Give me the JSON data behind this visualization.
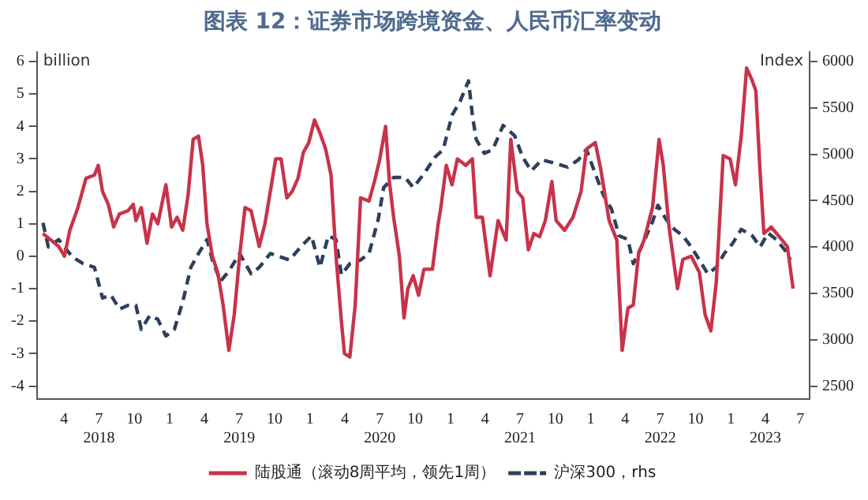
{
  "chart_data": {
    "type": "line",
    "title": "图表 12：证券市场跨境资金、人民币汇率变动",
    "ylabel": "billion",
    "y2label": "Index",
    "legend": "bottom",
    "marker": "none",
    "xlim": [
      "2018-01-20",
      "2023-07-25"
    ],
    "xticks": [
      {
        "value": "2018-04-01",
        "label": "4"
      },
      {
        "value": "2018-07-01",
        "label": "7\n2018"
      },
      {
        "value": "2018-10-01",
        "label": "10"
      },
      {
        "value": "2019-01-01",
        "label": "1"
      },
      {
        "value": "2019-04-01",
        "label": "4"
      },
      {
        "value": "2019-07-01",
        "label": "7\n2019"
      },
      {
        "value": "2019-10-01",
        "label": "10"
      },
      {
        "value": "2020-01-01",
        "label": "1"
      },
      {
        "value": "2020-04-01",
        "label": "4"
      },
      {
        "value": "2020-07-01",
        "label": "7\n2020"
      },
      {
        "value": "2020-10-01",
        "label": "10"
      },
      {
        "value": "2021-01-01",
        "label": "1"
      },
      {
        "value": "2021-04-01",
        "label": "4"
      },
      {
        "value": "2021-07-01",
        "label": "7\n2021"
      },
      {
        "value": "2021-10-01",
        "label": "10"
      },
      {
        "value": "2022-01-01",
        "label": "1"
      },
      {
        "value": "2022-04-01",
        "label": "4"
      },
      {
        "value": "2022-07-01",
        "label": "7\n2022"
      },
      {
        "value": "2022-10-01",
        "label": "10"
      },
      {
        "value": "2023-01-01",
        "label": "1"
      },
      {
        "value": "2023-04-01",
        "label": "4\n2023"
      },
      {
        "value": "2023-07-01",
        "label": "7"
      }
    ],
    "ylim": [
      -4.4,
      6.3
    ],
    "yticks": [
      -4,
      -3,
      -2,
      -1,
      0,
      1,
      2,
      3,
      4,
      5,
      6
    ],
    "y2lim": [
      2360,
      6105
    ],
    "y2ticks": [
      2500,
      3000,
      3500,
      4000,
      4500,
      5000,
      5500,
      6000
    ],
    "series": [
      {
        "name": "陆股通（滚动8周平均，领先1周）",
        "color": "#c8334a",
        "line_style": "solid",
        "x": [
          "2018-02-05",
          "2018-03-18",
          "2018-04-02",
          "2018-04-16",
          "2018-05-07",
          "2018-05-28",
          "2018-06-19",
          "2018-06-29",
          "2018-07-10",
          "2018-07-25",
          "2018-08-08",
          "2018-08-23",
          "2018-09-14",
          "2018-09-28",
          "2018-10-05",
          "2018-10-19",
          "2018-11-03",
          "2018-11-17",
          "2018-12-01",
          "2018-12-22",
          "2019-01-06",
          "2019-01-20",
          "2019-02-04",
          "2019-02-18",
          "2019-03-03",
          "2019-03-17",
          "2019-03-28",
          "2019-04-08",
          "2019-04-22",
          "2019-05-06",
          "2019-05-20",
          "2019-06-04",
          "2019-06-18",
          "2019-07-02",
          "2019-07-16",
          "2019-08-01",
          "2019-08-22",
          "2019-09-06",
          "2019-09-20",
          "2019-10-04",
          "2019-10-18",
          "2019-11-02",
          "2019-11-16",
          "2019-12-01",
          "2019-12-15",
          "2019-12-29",
          "2020-01-13",
          "2020-01-27",
          "2020-02-11",
          "2020-02-25",
          "2020-03-09",
          "2020-03-23",
          "2020-03-31",
          "2020-04-14",
          "2020-04-28",
          "2020-05-12",
          "2020-06-03",
          "2020-06-17",
          "2020-07-01",
          "2020-07-16",
          "2020-07-26",
          "2020-08-06",
          "2020-08-21",
          "2020-09-02",
          "2020-09-12",
          "2020-09-26",
          "2020-10-10",
          "2020-10-24",
          "2020-11-15",
          "2020-11-30",
          "2020-12-07",
          "2020-12-21",
          "2021-01-05",
          "2021-01-19",
          "2021-02-10",
          "2021-02-27",
          "2021-03-09",
          "2021-03-25",
          "2021-04-14",
          "2021-05-05",
          "2021-05-26",
          "2021-06-07",
          "2021-06-24",
          "2021-07-08",
          "2021-07-23",
          "2021-08-06",
          "2021-08-21",
          "2021-09-05",
          "2021-09-22",
          "2021-10-03",
          "2021-10-25",
          "2021-11-16",
          "2021-12-07",
          "2021-12-21",
          "2022-01-13",
          "2022-01-27",
          "2022-02-18",
          "2022-03-10",
          "2022-03-24",
          "2022-04-08",
          "2022-04-22",
          "2022-05-06",
          "2022-05-20",
          "2022-06-11",
          "2022-06-28",
          "2022-07-09",
          "2022-07-24",
          "2022-08-15",
          "2022-08-29",
          "2022-09-20",
          "2022-10-11",
          "2022-10-26",
          "2022-11-10",
          "2022-11-24",
          "2022-12-12",
          "2022-12-30",
          "2023-01-13",
          "2023-01-28",
          "2023-02-11",
          "2023-02-26",
          "2023-03-07",
          "2023-03-18",
          "2023-03-28",
          "2023-04-16",
          "2023-05-07",
          "2023-05-28",
          "2023-06-12"
        ],
        "values": [
          0.7,
          0.3,
          0,
          0.8,
          1.5,
          2.4,
          2.5,
          2.8,
          2.0,
          1.6,
          0.9,
          1.3,
          1.4,
          1.6,
          1.1,
          1.5,
          0.4,
          1.3,
          1.0,
          2.2,
          0.9,
          1.2,
          0.8,
          1.9,
          3.6,
          3.7,
          2.8,
          1.0,
          0,
          -0.5,
          -1.5,
          -2.9,
          -1.8,
          0,
          1.5,
          1.4,
          0.3,
          1.0,
          2.0,
          3.0,
          3.0,
          1.8,
          2.0,
          2.4,
          3.2,
          3.5,
          4.2,
          3.8,
          3.3,
          2.5,
          0,
          -2.0,
          -3.0,
          -3.1,
          -1.5,
          1.8,
          1.7,
          2.3,
          3.0,
          4.0,
          2.3,
          1.2,
          0,
          -1.9,
          -1.0,
          -0.6,
          -1.2,
          -0.4,
          -0.4,
          1.0,
          1.5,
          2.8,
          2.2,
          3.0,
          2.8,
          3.0,
          1.2,
          1.2,
          -0.6,
          1.1,
          0.5,
          3.6,
          2.0,
          1.8,
          0.2,
          0.7,
          0.6,
          1.1,
          2.3,
          1.1,
          0.8,
          1.2,
          2.0,
          3.3,
          3.5,
          2.7,
          1.1,
          0.5,
          -2.9,
          -1.6,
          -1.5,
          0.1,
          0.5,
          1.5,
          3.6,
          2.8,
          0.9,
          -1.0,
          -0.1,
          0,
          -0.5,
          -1.8,
          -2.3,
          -0.8,
          3.1,
          3.0,
          2.2,
          3.7,
          5.8,
          5.4,
          5.1,
          2.6,
          0.7,
          0.9,
          0.6,
          0.3,
          -1.0
        ]
      },
      {
        "name": "沪深300，rhs",
        "color": "#2e3f5c",
        "line_style": "dashed",
        "axis": "y2",
        "x": [
          "2018-02-05",
          "2018-02-19",
          "2018-03-18",
          "2018-04-23",
          "2018-05-21",
          "2018-06-19",
          "2018-07-10",
          "2018-08-01",
          "2018-08-23",
          "2018-09-14",
          "2018-10-05",
          "2018-10-19",
          "2018-11-10",
          "2018-12-01",
          "2018-12-22",
          "2019-01-13",
          "2019-02-04",
          "2019-02-25",
          "2019-03-17",
          "2019-04-08",
          "2019-04-22",
          "2019-05-13",
          "2019-06-04",
          "2019-07-02",
          "2019-08-01",
          "2019-08-22",
          "2019-09-20",
          "2019-10-18",
          "2019-11-09",
          "2019-12-08",
          "2020-01-05",
          "2020-01-27",
          "2020-02-18",
          "2020-03-09",
          "2020-03-23",
          "2020-04-14",
          "2020-05-12",
          "2020-06-03",
          "2020-06-27",
          "2020-07-11",
          "2020-08-06",
          "2020-09-05",
          "2020-09-26",
          "2020-10-24",
          "2020-11-22",
          "2020-12-13",
          "2021-01-05",
          "2021-01-26",
          "2021-02-17",
          "2021-02-27",
          "2021-03-09",
          "2021-03-30",
          "2021-04-21",
          "2021-05-18",
          "2021-06-17",
          "2021-07-08",
          "2021-07-30",
          "2021-08-27",
          "2021-10-03",
          "2021-11-02",
          "2021-11-30",
          "2021-12-21",
          "2022-01-13",
          "2022-02-03",
          "2022-02-24",
          "2022-03-16",
          "2022-04-08",
          "2022-04-22",
          "2022-05-13",
          "2022-06-11",
          "2022-06-25",
          "2022-07-16",
          "2022-08-07",
          "2022-08-29",
          "2022-09-20",
          "2022-10-11",
          "2022-11-02",
          "2022-11-24",
          "2022-12-15",
          "2023-01-06",
          "2023-01-28",
          "2023-02-26",
          "2023-03-18",
          "2023-04-08",
          "2023-04-29",
          "2023-05-21",
          "2023-06-05"
        ],
        "values": [
          4260,
          4000,
          4080,
          3890,
          3820,
          3780,
          3450,
          3480,
          3330,
          3370,
          3370,
          3110,
          3260,
          3220,
          3040,
          3110,
          3410,
          3780,
          3930,
          4080,
          3860,
          3630,
          3740,
          3930,
          3710,
          3780,
          3930,
          3890,
          3860,
          4000,
          4120,
          3780,
          4120,
          4080,
          3700,
          3820,
          3860,
          3930,
          4300,
          4640,
          4750,
          4750,
          4640,
          4790,
          4970,
          5050,
          5420,
          5570,
          5790,
          5420,
          5160,
          5010,
          5050,
          5310,
          5200,
          4970,
          4820,
          4940,
          4900,
          4860,
          4940,
          5050,
          4790,
          4560,
          4410,
          4120,
          4080,
          3820,
          4000,
          4270,
          4450,
          4300,
          4190,
          4120,
          4000,
          3860,
          3710,
          3780,
          3930,
          4040,
          4190,
          4120,
          4000,
          4150,
          4080,
          3970,
          3860
        ]
      }
    ]
  }
}
